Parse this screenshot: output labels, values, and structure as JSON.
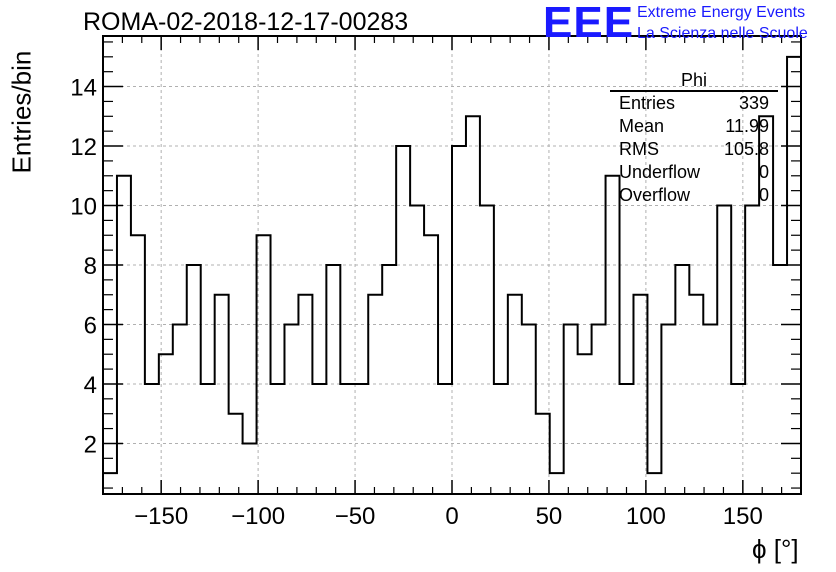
{
  "header": {
    "run_title": "ROMA-02-2018-12-17-00283",
    "logo_text": "EEE",
    "logo_line1": "Extreme Energy Events",
    "logo_line2": "La Scienza nelle Scuole"
  },
  "stats": {
    "title": "Phi",
    "rows": [
      {
        "label": "Entries",
        "value": "339"
      },
      {
        "label": "Mean",
        "value": "11.99"
      },
      {
        "label": "RMS",
        "value": "105.8"
      },
      {
        "label": "Underflow",
        "value": "0"
      },
      {
        "label": "Overflow",
        "value": "0"
      }
    ]
  },
  "chart_data": {
    "type": "bar",
    "style": "step-histogram",
    "title": "ROMA-02-2018-12-17-00283",
    "xlabel": "ϕ [°]",
    "ylabel": "Entries/bin",
    "bin_edges_start": -180,
    "bin_width": 7.2,
    "values": [
      1,
      11,
      9,
      4,
      5,
      6,
      8,
      4,
      7,
      3,
      2,
      9,
      4,
      6,
      7,
      4,
      8,
      4,
      4,
      7,
      8,
      12,
      10,
      9,
      4,
      12,
      13,
      10,
      4,
      7,
      6,
      3,
      1,
      6,
      5,
      6,
      11,
      4,
      7,
      1,
      6,
      8,
      7,
      6,
      10,
      4,
      10,
      13,
      8,
      15
    ],
    "xlim": [
      -180,
      180
    ],
    "ylim": [
      0.3,
      15.7
    ],
    "x_ticks": [
      -150,
      -100,
      -50,
      0,
      50,
      100,
      150
    ],
    "x_tick_labels": [
      "−150",
      "−100",
      "−50",
      "0",
      "50",
      "100",
      "150"
    ],
    "y_ticks": [
      2,
      4,
      6,
      8,
      10,
      12,
      14
    ],
    "y_tick_labels": [
      "2",
      "4",
      "6",
      "8",
      "10",
      "12",
      "14"
    ],
    "grid": true,
    "colors": {
      "line": "#000000",
      "grid": "#b0b0b0"
    }
  }
}
